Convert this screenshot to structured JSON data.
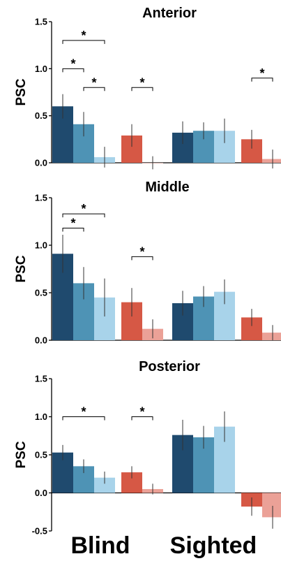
{
  "groups": [
    "Blind",
    "Sighted"
  ],
  "palette": {
    "blue_dark": "#1f4a6e",
    "blue_mid": "#4e93b5",
    "blue_light": "#a8d3ea",
    "red": "#d65845",
    "red_light": "#eba197"
  },
  "chart_data": [
    {
      "type": "bar",
      "title": "Anterior",
      "ylabel": "PSC",
      "ylim": [
        0,
        1.5
      ],
      "yticks": [
        "0.0",
        "0.5",
        "1.0",
        "1.5"
      ],
      "bars": [
        {
          "group": "Blind",
          "color": "blue_dark",
          "value": 0.6,
          "err": 0.13
        },
        {
          "group": "Blind",
          "color": "blue_mid",
          "value": 0.41,
          "err": 0.13
        },
        {
          "group": "Blind",
          "color": "blue_light",
          "value": 0.06,
          "err": 0.11
        },
        {
          "group": "Blind",
          "color": "red",
          "value": 0.29,
          "err": 0.12
        },
        {
          "group": "Blind",
          "color": "red_light",
          "value": 0.0,
          "err": 0.07
        },
        {
          "group": "Sighted",
          "color": "blue_dark",
          "value": 0.32,
          "err": 0.12
        },
        {
          "group": "Sighted",
          "color": "blue_mid",
          "value": 0.34,
          "err": 0.09
        },
        {
          "group": "Sighted",
          "color": "blue_light",
          "value": 0.34,
          "err": 0.13
        },
        {
          "group": "Sighted",
          "color": "red",
          "value": 0.25,
          "err": 0.1
        },
        {
          "group": "Sighted",
          "color": "red_light",
          "value": 0.04,
          "err": 0.1
        }
      ],
      "significance": [
        {
          "from": 0,
          "to": 2,
          "label": "*",
          "y": 1.3
        },
        {
          "from": 0,
          "to": 1,
          "label": "*",
          "y": 1.0
        },
        {
          "from": 1,
          "to": 2,
          "label": "*",
          "y": 0.8
        },
        {
          "from": 3,
          "to": 4,
          "label": "*",
          "y": 0.8
        },
        {
          "from": 8,
          "to": 9,
          "label": "*",
          "y": 0.9
        }
      ]
    },
    {
      "type": "bar",
      "title": "Middle",
      "ylabel": "PSC",
      "ylim": [
        0,
        1.5
      ],
      "yticks": [
        "0.0",
        "0.5",
        "1.0",
        "1.5"
      ],
      "bars": [
        {
          "group": "Blind",
          "color": "blue_dark",
          "value": 0.91,
          "err": 0.2
        },
        {
          "group": "Blind",
          "color": "blue_mid",
          "value": 0.6,
          "err": 0.17
        },
        {
          "group": "Blind",
          "color": "blue_light",
          "value": 0.45,
          "err": 0.2
        },
        {
          "group": "Blind",
          "color": "red",
          "value": 0.4,
          "err": 0.15
        },
        {
          "group": "Blind",
          "color": "red_light",
          "value": 0.12,
          "err": 0.1
        },
        {
          "group": "Sighted",
          "color": "blue_dark",
          "value": 0.39,
          "err": 0.13
        },
        {
          "group": "Sighted",
          "color": "blue_mid",
          "value": 0.46,
          "err": 0.11
        },
        {
          "group": "Sighted",
          "color": "blue_light",
          "value": 0.51,
          "err": 0.13
        },
        {
          "group": "Sighted",
          "color": "red",
          "value": 0.24,
          "err": 0.09
        },
        {
          "group": "Sighted",
          "color": "red_light",
          "value": 0.08,
          "err": 0.08
        }
      ],
      "significance": [
        {
          "from": 0,
          "to": 2,
          "label": "*",
          "y": 1.33
        },
        {
          "from": 0,
          "to": 1,
          "label": "*",
          "y": 1.18
        },
        {
          "from": 3,
          "to": 4,
          "label": "*",
          "y": 0.88
        }
      ]
    },
    {
      "type": "bar",
      "title": "Posterior",
      "ylabel": "PSC",
      "ylim": [
        -0.5,
        1.5
      ],
      "yticks": [
        "-0.5",
        "0.0",
        "0.5",
        "1.0",
        "1.5"
      ],
      "bars": [
        {
          "group": "Blind",
          "color": "blue_dark",
          "value": 0.53,
          "err": 0.1
        },
        {
          "group": "Blind",
          "color": "blue_mid",
          "value": 0.35,
          "err": 0.09
        },
        {
          "group": "Blind",
          "color": "blue_light",
          "value": 0.2,
          "err": 0.08
        },
        {
          "group": "Blind",
          "color": "red",
          "value": 0.27,
          "err": 0.08
        },
        {
          "group": "Blind",
          "color": "red_light",
          "value": 0.05,
          "err": 0.07
        },
        {
          "group": "Sighted",
          "color": "blue_dark",
          "value": 0.76,
          "err": 0.2
        },
        {
          "group": "Sighted",
          "color": "blue_mid",
          "value": 0.73,
          "err": 0.15
        },
        {
          "group": "Sighted",
          "color": "blue_light",
          "value": 0.87,
          "err": 0.2
        },
        {
          "group": "Sighted",
          "color": "red",
          "value": -0.18,
          "err": 0.12
        },
        {
          "group": "Sighted",
          "color": "red_light",
          "value": -0.32,
          "err": 0.15
        }
      ],
      "significance": [
        {
          "from": 0,
          "to": 2,
          "label": "*",
          "y": 1.0
        },
        {
          "from": 3,
          "to": 4,
          "label": "*",
          "y": 1.0
        }
      ]
    }
  ]
}
